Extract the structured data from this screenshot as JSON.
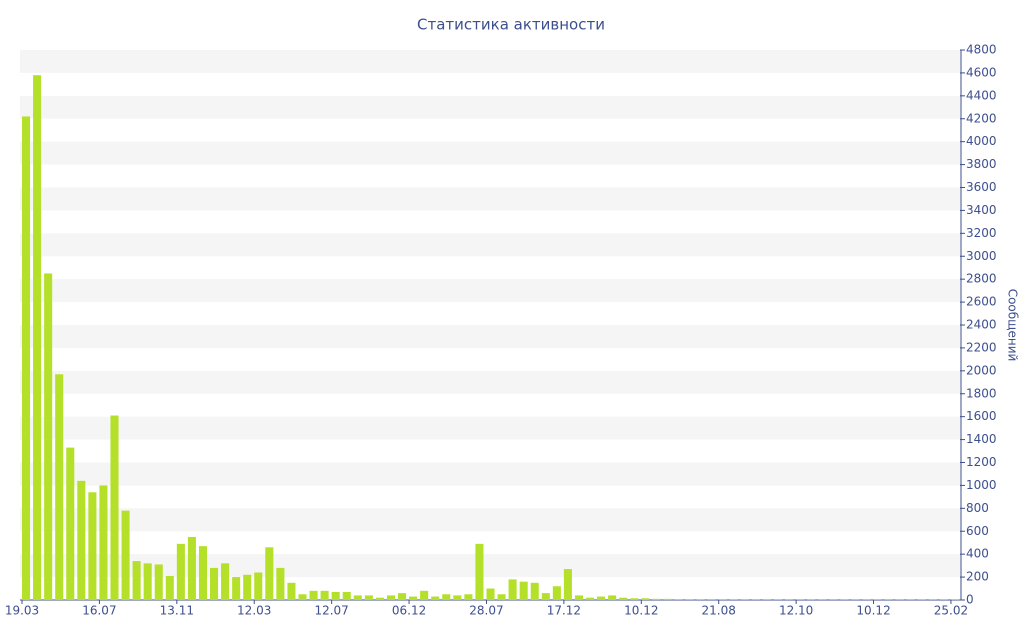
{
  "chart_data": {
    "type": "bar",
    "title": "Статистика активности",
    "y_axis_label": "Сообщений",
    "color": "#b5e02a",
    "grid": "bands",
    "categories": [
      "19.03",
      null,
      null,
      null,
      null,
      null,
      null,
      "16.07",
      null,
      null,
      null,
      null,
      null,
      null,
      "13.11",
      null,
      null,
      null,
      null,
      null,
      null,
      "12.03",
      null,
      null,
      null,
      null,
      null,
      null,
      "12.07",
      null,
      null,
      null,
      null,
      null,
      null,
      "06.12",
      null,
      null,
      null,
      null,
      null,
      null,
      "28.07",
      null,
      null,
      null,
      null,
      null,
      null,
      "17.12",
      null,
      null,
      null,
      null,
      null,
      null,
      "10.12",
      null,
      null,
      null,
      null,
      null,
      null,
      "21.08",
      null,
      null,
      null,
      null,
      null,
      null,
      "12.10",
      null,
      null,
      null,
      null,
      null,
      null,
      "10.12",
      null,
      null,
      null,
      null,
      null,
      null,
      "25.02"
    ],
    "values": [
      4220,
      4580,
      2850,
      1970,
      1330,
      1040,
      940,
      1000,
      1610,
      780,
      340,
      320,
      310,
      210,
      490,
      550,
      470,
      280,
      320,
      200,
      220,
      240,
      460,
      280,
      150,
      50,
      80,
      80,
      70,
      70,
      40,
      40,
      20,
      40,
      60,
      30,
      80,
      30,
      50,
      40,
      50,
      490,
      100,
      50,
      180,
      160,
      150,
      60,
      120,
      270,
      40,
      20,
      30,
      40,
      20,
      15,
      15,
      10,
      10,
      8,
      8,
      8,
      8,
      8,
      8,
      8,
      8,
      8,
      8,
      8,
      8,
      8,
      8,
      8,
      8,
      8,
      8,
      8,
      8,
      8,
      8,
      8,
      8,
      8,
      8
    ],
    "ylim": [
      0,
      4800
    ],
    "yticks": [
      0,
      200,
      400,
      600,
      800,
      1000,
      1200,
      1400,
      1600,
      1800,
      2000,
      2200,
      2400,
      2600,
      2800,
      3000,
      3200,
      3400,
      3600,
      3800,
      4000,
      4200,
      4400,
      4600,
      4800
    ]
  }
}
